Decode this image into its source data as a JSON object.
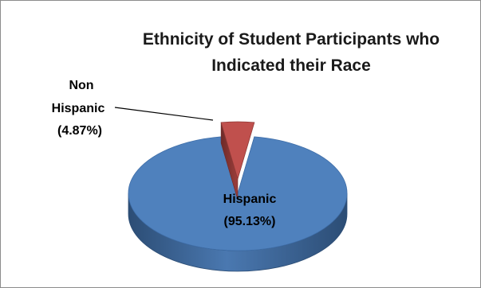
{
  "chart_data": {
    "type": "pie",
    "title_lines": [
      "Ethnicity of  Student Participants who",
      "Indicated their Race"
    ],
    "slices": [
      {
        "name": "Hispanic",
        "value": 95.13,
        "label_name": "Hispanic",
        "label_value": "(95.13%)",
        "color": "#4f81bd",
        "label_color": "#1a1a1a"
      },
      {
        "name": "Non Hispanic",
        "value": 4.87,
        "label_name_lines": [
          "Non",
          "Hispanic"
        ],
        "label_value": "(4.87%)",
        "color": "#c0504d",
        "label_color": "#1a1a1a"
      }
    ],
    "pie_3d": true,
    "legend": "none"
  }
}
